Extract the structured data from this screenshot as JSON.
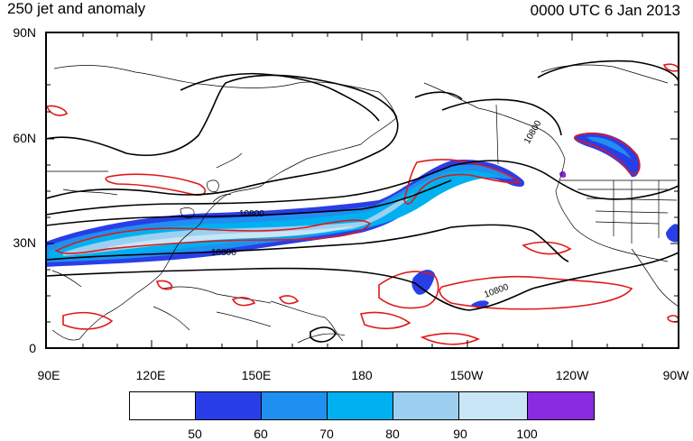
{
  "title_left": "250 jet and anomaly",
  "title_right": "0000 UTC 6 Jan 2013",
  "lat_labels": [
    "90N",
    "60N",
    "30N",
    "0"
  ],
  "lon_labels": [
    "90E",
    "120E",
    "150E",
    "180",
    "150W",
    "120W",
    "90W"
  ],
  "contour_labels": [
    "10800",
    "10800",
    "10800",
    "10800"
  ],
  "colorbar": {
    "labels": [
      "50",
      "60",
      "70",
      "80",
      "90",
      "100"
    ],
    "colors": [
      "#ffffff",
      "#2a3ee8",
      "#1f8ff0",
      "#00b0f0",
      "#9dd0f0",
      "#c8e6f6",
      "#8a2be2"
    ]
  },
  "colors": {
    "contour": "#000000",
    "anomaly": "#e01818",
    "coast": "#000000"
  }
}
